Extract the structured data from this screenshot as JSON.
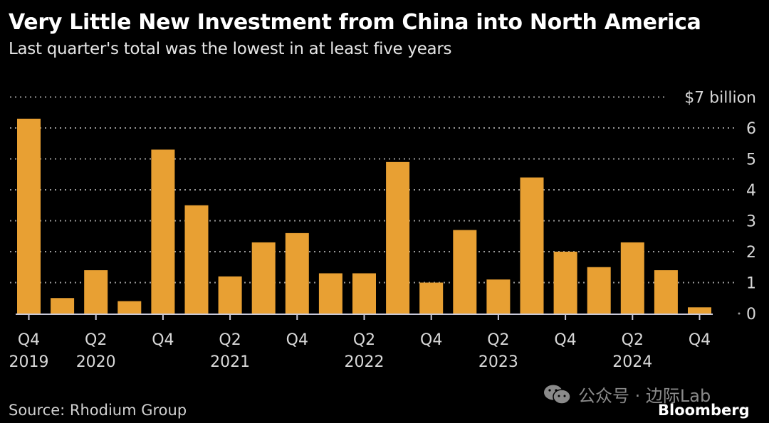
{
  "header": {
    "title": "Very Little New Investment from China into North America",
    "subtitle": "Last quarter's total was the lowest in at least five years"
  },
  "footer": {
    "source": "Source: Rhodium Group",
    "brand": "Bloomberg",
    "watermark": "公众号 · 边际Lab",
    "watermark_icon": "wechat-icon"
  },
  "colors": {
    "bar": "#E8A033",
    "background": "#000000",
    "grid": "#9a9a9a",
    "axis": "#c8c8d8"
  },
  "chart_data": {
    "type": "bar",
    "title": "Very Little New Investment from China into North America",
    "subtitle": "Last quarter's total was the lowest in at least five years",
    "xlabel": "",
    "ylabel": "",
    "unit": "$ billion",
    "categories": [
      "Q4 2019",
      "Q1 2020",
      "Q2 2020",
      "Q3 2020",
      "Q4 2020",
      "Q1 2021",
      "Q2 2021",
      "Q3 2021",
      "Q4 2021",
      "Q1 2022",
      "Q2 2022",
      "Q3 2022",
      "Q4 2022",
      "Q1 2023",
      "Q2 2023",
      "Q3 2023",
      "Q4 2023",
      "Q1 2024",
      "Q2 2024",
      "Q3 2024",
      "Q4 2024"
    ],
    "values": [
      6.3,
      0.5,
      1.4,
      0.4,
      5.3,
      3.5,
      1.2,
      2.3,
      2.6,
      1.3,
      1.3,
      4.9,
      1.0,
      2.7,
      1.1,
      4.4,
      2.0,
      1.5,
      2.3,
      1.4,
      0.2
    ],
    "ylim": [
      0,
      7
    ],
    "yticks": [
      {
        "value": 7,
        "label": "$7 billion"
      },
      {
        "value": 6,
        "label": "6"
      },
      {
        "value": 5,
        "label": "5"
      },
      {
        "value": 4,
        "label": "4"
      },
      {
        "value": 3,
        "label": "3"
      },
      {
        "value": 2,
        "label": "2"
      },
      {
        "value": 1,
        "label": "1"
      },
      {
        "value": 0,
        "label": "0"
      }
    ],
    "xticks": [
      {
        "index": 0,
        "line1": "Q4",
        "line2": "2019"
      },
      {
        "index": 2,
        "line1": "Q2",
        "line2": "2020"
      },
      {
        "index": 4,
        "line1": "Q4",
        "line2": ""
      },
      {
        "index": 6,
        "line1": "Q2",
        "line2": "2021"
      },
      {
        "index": 8,
        "line1": "Q4",
        "line2": ""
      },
      {
        "index": 10,
        "line1": "Q2",
        "line2": "2022"
      },
      {
        "index": 12,
        "line1": "Q4",
        "line2": ""
      },
      {
        "index": 14,
        "line1": "Q2",
        "line2": "2023"
      },
      {
        "index": 16,
        "line1": "Q4",
        "line2": ""
      },
      {
        "index": 18,
        "line1": "Q2",
        "line2": "2024"
      },
      {
        "index": 20,
        "line1": "Q4",
        "line2": ""
      }
    ],
    "grid": true,
    "legend": "none",
    "y_axis_position": "right"
  }
}
